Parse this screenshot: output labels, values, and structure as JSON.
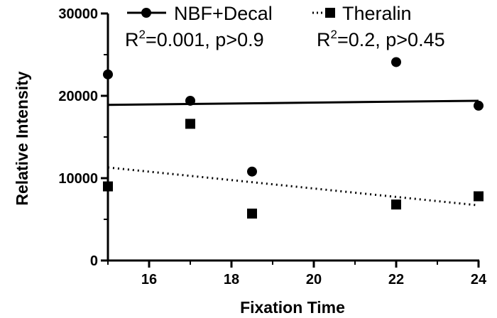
{
  "chart_data": {
    "type": "scatter",
    "xlabel": "Fixation Time",
    "ylabel": "Relative Intensity",
    "xlim": [
      15,
      24
    ],
    "ylim": [
      0,
      30000
    ],
    "xticks": [
      "16",
      "18",
      "20",
      "22",
      "24"
    ],
    "yticks": [
      "0",
      "10000",
      "20000",
      "30000"
    ],
    "grid": false,
    "legend_position": "top",
    "series": [
      {
        "name": "NBF+Decal",
        "marker": "circle",
        "line_style": "solid",
        "color": "#000000",
        "points": [
          {
            "x": 15,
            "y": 22600
          },
          {
            "x": 17,
            "y": 19400
          },
          {
            "x": 18.5,
            "y": 10800
          },
          {
            "x": 22,
            "y": 24100
          },
          {
            "x": 24,
            "y": 18800
          }
        ],
        "fit": {
          "x": [
            15,
            24
          ],
          "y": [
            18900,
            19400
          ]
        },
        "stat": {
          "r2_label": "R",
          "r2_sup": "2",
          "r2_value": "=0.001, p>0.9"
        }
      },
      {
        "name": "Theralin",
        "marker": "square",
        "line_style": "dotted",
        "color": "#000000",
        "points": [
          {
            "x": 15,
            "y": 9000
          },
          {
            "x": 17,
            "y": 16600
          },
          {
            "x": 18.5,
            "y": 5700
          },
          {
            "x": 22,
            "y": 6800
          },
          {
            "x": 24,
            "y": 7800
          }
        ],
        "fit": {
          "x": [
            15,
            24
          ],
          "y": [
            11300,
            6700
          ]
        },
        "stat": {
          "r2_label": "R",
          "r2_sup": "2",
          "r2_value": "=0.2, p>0.45"
        }
      }
    ]
  }
}
